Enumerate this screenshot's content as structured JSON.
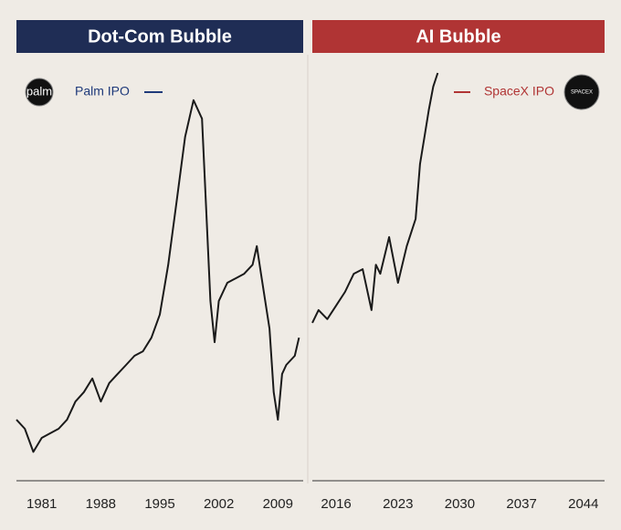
{
  "chart_data": [
    {
      "type": "line",
      "title": "Dot-Com Bubble",
      "header_color": "#1f2d55",
      "color": "#1a1a1a",
      "annotation": "Palm IPO",
      "annotation_color": "#1f3a7a",
      "logo": "palm",
      "x": [
        1978,
        1979,
        1980,
        1981,
        1982,
        1983,
        1984,
        1985,
        1986,
        1987,
        1988,
        1989,
        1990,
        1991,
        1992,
        1993,
        1994,
        1995,
        1996,
        1997,
        1998,
        1999,
        2000,
        2000.5,
        2001,
        2001.5,
        2002,
        2003,
        2004,
        2005,
        2006,
        2006.5,
        2007,
        2008,
        2008.5,
        2009,
        2009.5,
        2010,
        2011,
        2011.5
      ],
      "values": [
        14.8,
        12.6,
        7,
        10.4,
        11.5,
        12.6,
        14.8,
        19.2,
        21.5,
        24.8,
        19.2,
        23.7,
        25.9,
        28.1,
        30.3,
        31.4,
        34.7,
        40.3,
        52.4,
        67.9,
        83.4,
        92.3,
        87.8,
        65.7,
        43.6,
        33.6,
        43.6,
        48,
        49.1,
        50.2,
        52.4,
        56.9,
        50.2,
        36.9,
        21.5,
        14.8,
        25.9,
        28.1,
        30.3,
        34.7
      ],
      "xlim": [
        1978,
        2012
      ],
      "xticks": [
        1981,
        1988,
        1995,
        2002,
        2009
      ],
      "ylim": [
        0,
        100
      ]
    },
    {
      "type": "line",
      "title": "AI Bubble",
      "header_color": "#b03434",
      "color": "#1a1a1a",
      "annotation": "SpaceX IPO",
      "annotation_color": "#b03434",
      "logo": "SPACEX",
      "x": [
        2013.3,
        2014,
        2015,
        2016,
        2017,
        2018,
        2019,
        2020,
        2020.5,
        2021,
        2022,
        2023,
        2024,
        2025,
        2025.5,
        2026,
        2026.5,
        2027,
        2027.5
      ],
      "values": [
        38.3,
        41.4,
        39.2,
        42.5,
        45.8,
        50.2,
        51.3,
        41.4,
        52.4,
        50.2,
        59.1,
        48,
        56.9,
        63.5,
        76.8,
        83.4,
        90,
        95.6,
        98.9
      ],
      "xlim": [
        2013.3,
        2046.4
      ],
      "xticks": [
        2016,
        2023,
        2030,
        2037,
        2044
      ],
      "ylim": [
        0,
        100
      ]
    }
  ]
}
